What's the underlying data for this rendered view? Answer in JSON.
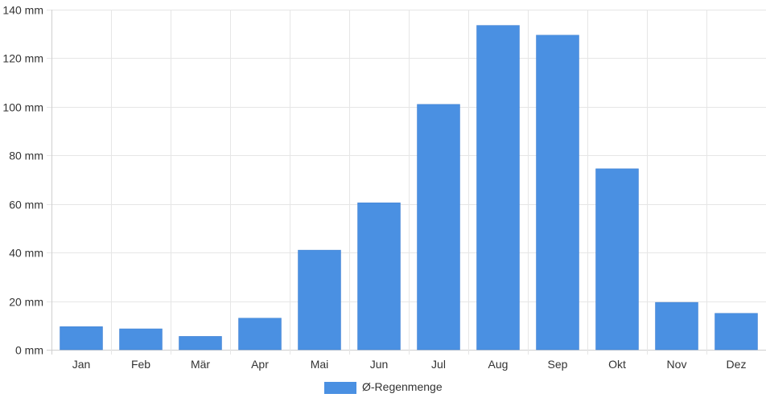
{
  "chart_data": {
    "type": "bar",
    "categories": [
      "Jan",
      "Feb",
      "Mär",
      "Apr",
      "Mai",
      "Jun",
      "Jul",
      "Aug",
      "Sep",
      "Okt",
      "Nov",
      "Dez"
    ],
    "series": [
      {
        "name": "Ø-Regenmenge",
        "values": [
          9.5,
          8.6,
          5.5,
          13,
          41,
          60.5,
          101,
          133.5,
          129.5,
          74.5,
          19.5,
          15
        ],
        "color": "#4a90e2"
      }
    ],
    "y_ticks": [
      "0 mm",
      "20 mm",
      "40 mm",
      "60 mm",
      "80 mm",
      "100 mm",
      "120 mm",
      "140 mm"
    ],
    "ylim": [
      0,
      140
    ],
    "unit": "mm",
    "grid": true,
    "legend_position": "bottom"
  }
}
